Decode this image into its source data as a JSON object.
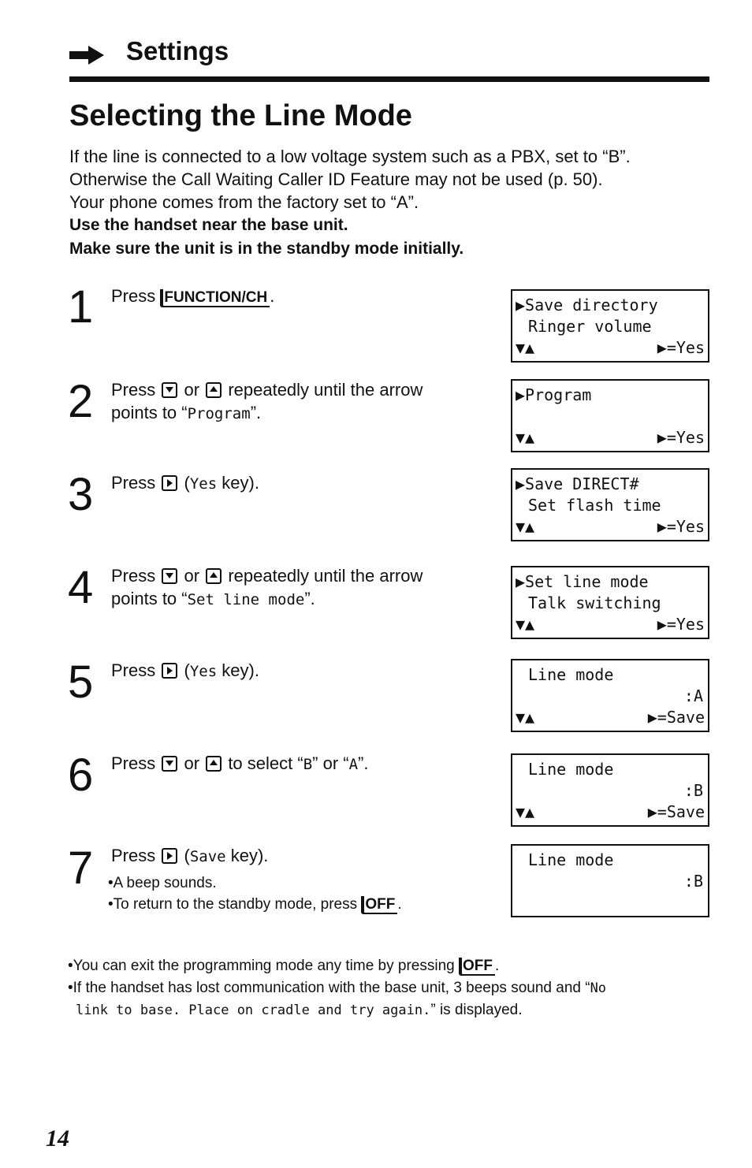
{
  "header": {
    "section": "Settings"
  },
  "title": "Selecting the Line Mode",
  "intro": [
    "If the line is connected to a low voltage system such as a PBX, set to “B”.",
    "Otherwise the Call Waiting Caller ID Feature may not be used (p. 50).",
    "Your phone comes from the factory set to “A”."
  ],
  "instructions": [
    "Use the handset near the base unit.",
    "Make sure the unit is in the standby mode initially."
  ],
  "steps": [
    {
      "number": "1",
      "text": [
        "Press",
        "FUNCTION/CH",
        "."
      ],
      "display": [
        "▶Save directory",
        "Ringer volume",
        "▼▲",
        "▶=Yes"
      ]
    },
    {
      "number": "2",
      "text": [
        "Press",
        "or",
        "repeatedly until the arrow",
        "points to “",
        "Program",
        "”."
      ],
      "display": [
        "▶Program",
        "▼▲",
        "▶=Yes"
      ]
    },
    {
      "number": "3",
      "text": [
        "Press",
        "(",
        "Yes",
        " key)."
      ],
      "display": [
        "▶Save DIRECT#",
        "Set flash time",
        "▼▲",
        "▶=Yes"
      ]
    },
    {
      "number": "4",
      "text": [
        "Press",
        "or",
        "repeatedly until the arrow",
        "points to “",
        "Set line mode",
        "”."
      ],
      "display": [
        "▶Set line mode",
        "Talk switching",
        "▼▲",
        "▶=Yes"
      ]
    },
    {
      "number": "5",
      "text": [
        "Press",
        "(",
        "Yes",
        " key)."
      ],
      "display": [
        "Line mode",
        ":A",
        "▼▲",
        "▶=Save"
      ]
    },
    {
      "number": "6",
      "text": [
        "Press",
        "or",
        "to select “",
        "B",
        "” or “",
        "A",
        "”."
      ],
      "display": [
        "Line mode",
        ":B",
        "▼▲",
        "▶=Save"
      ]
    },
    {
      "number": "7",
      "text": [
        "Press",
        "(",
        "Save",
        " key)."
      ],
      "notes": [
        "•A beep sounds.",
        "•To return to the standby mode, press",
        "OFF",
        "."
      ],
      "display": [
        "Line mode",
        ":B"
      ]
    }
  ],
  "notes": [
    [
      "•You can exit the programming mode any time by pressing",
      "OFF",
      "."
    ],
    [
      "•If the handset has lost communication with the base unit, 3 beeps sound and “",
      "No",
      "link to base. Place on cradle and try again.",
      "” is displayed."
    ]
  ],
  "page_number": "14"
}
